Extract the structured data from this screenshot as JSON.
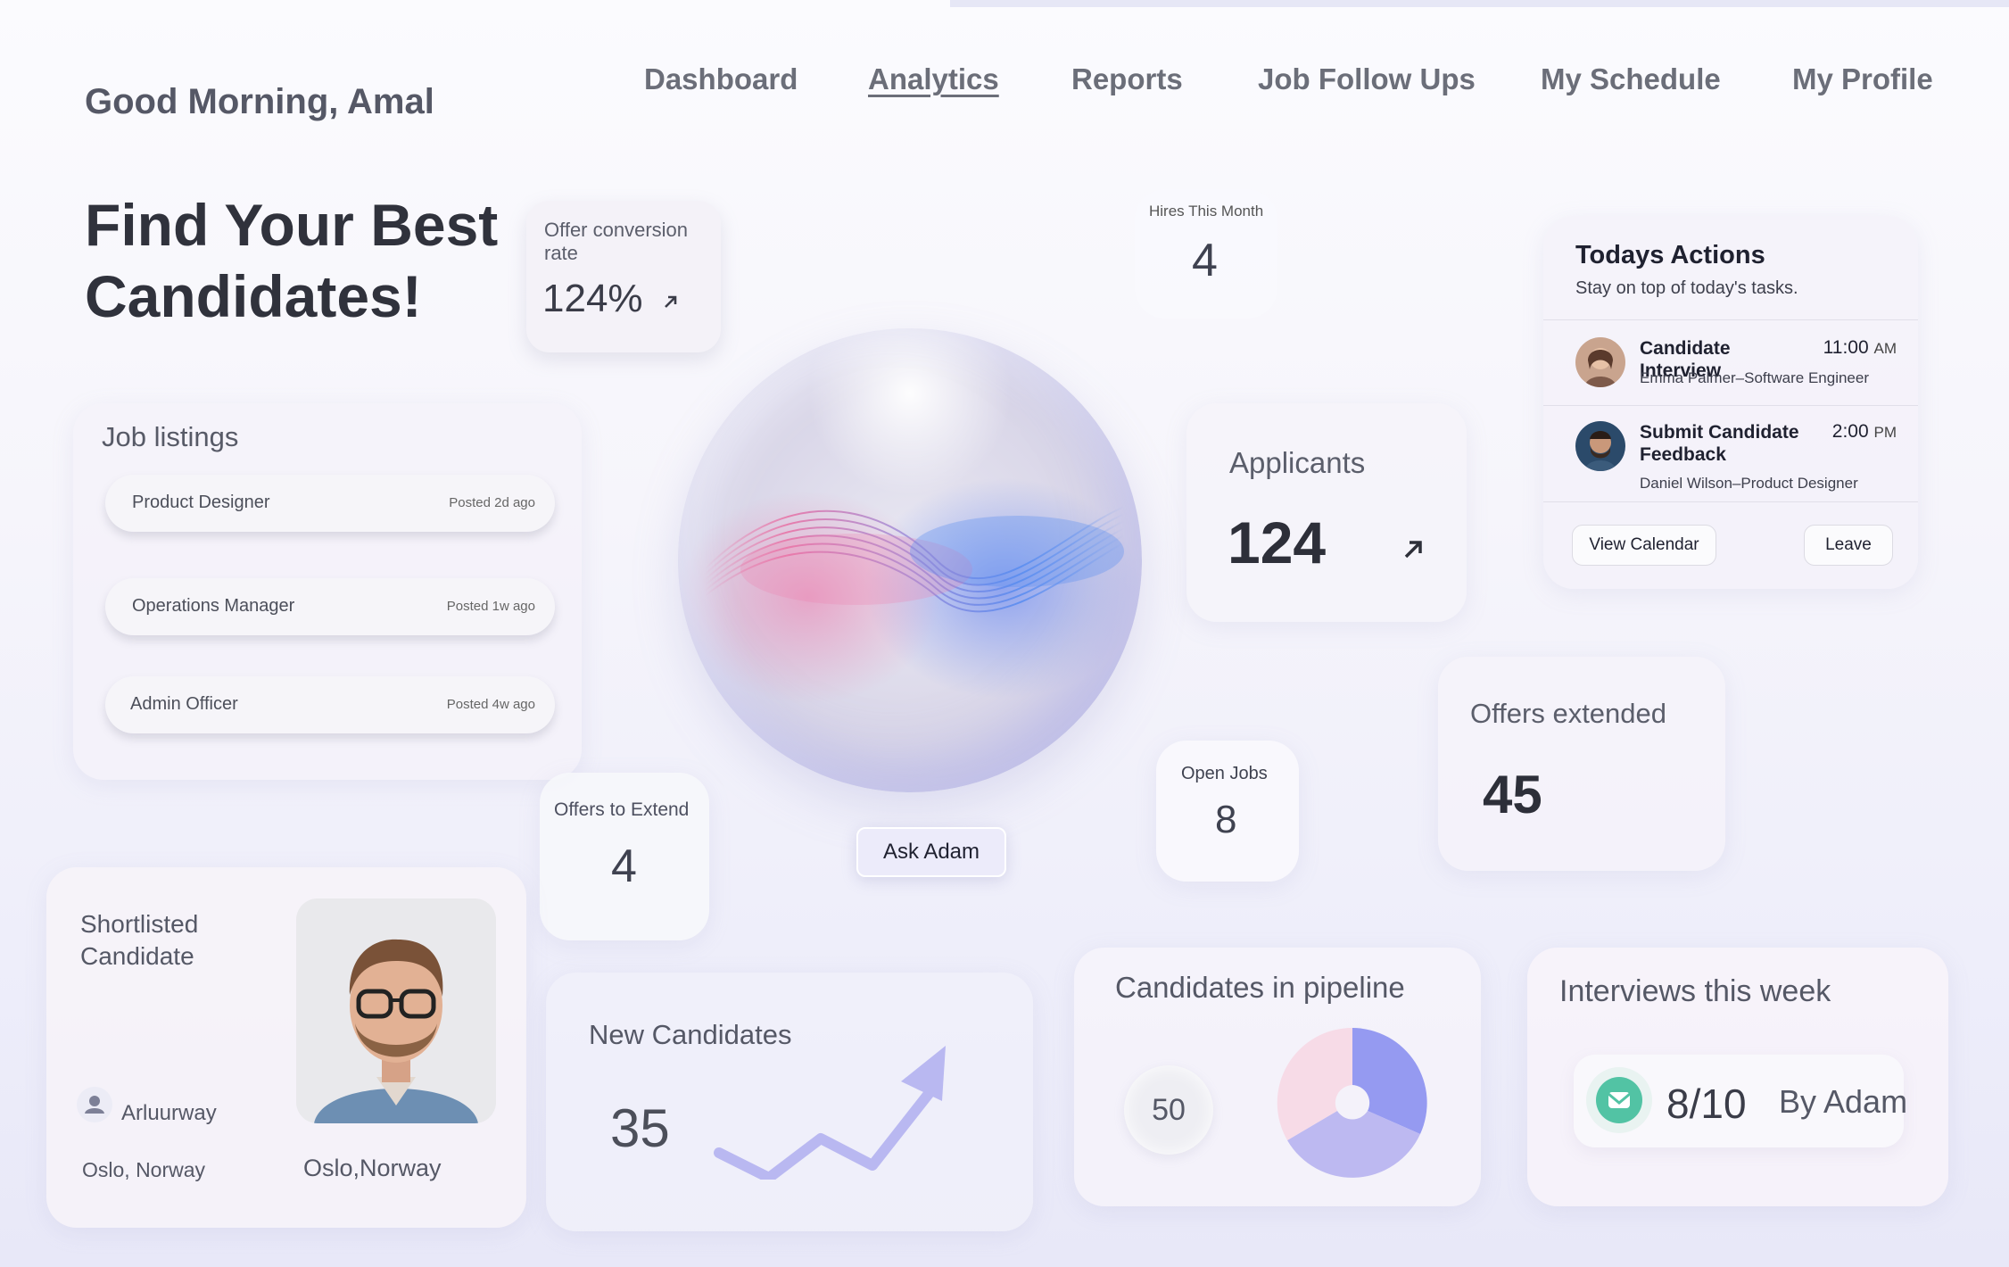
{
  "greeting": "Good Morning, Amal",
  "nav": {
    "items": [
      {
        "label": "Dashboard"
      },
      {
        "label": "Analytics"
      },
      {
        "label": "Reports"
      },
      {
        "label": "Job Follow Ups"
      },
      {
        "label": "My Schedule"
      },
      {
        "label": "My Profile"
      }
    ],
    "active": "Analytics"
  },
  "hero": {
    "line1": "Find Your Best",
    "line2": "Candidates!"
  },
  "offer_conversion": {
    "label": "Offer conversion rate",
    "value": "124%"
  },
  "hires_this_month": {
    "label": "Hires This Month",
    "value": "4"
  },
  "job_listings": {
    "title": "Job listings",
    "items": [
      {
        "name": "Product Designer",
        "posted": "Posted 2d ago"
      },
      {
        "name": "Operations Manager",
        "posted": "Posted 1w ago"
      },
      {
        "name": "Admin Officer",
        "posted": "Posted 4w ago"
      }
    ]
  },
  "applicants": {
    "label": "Applicants",
    "value": "124"
  },
  "todays_actions": {
    "title": "Todays Actions",
    "subtitle": "Stay on top of today's tasks.",
    "tasks": [
      {
        "title": "Candidate Interview",
        "time": "11:00",
        "period": "AM",
        "desc": "Emma Palmer–Software Engineer"
      },
      {
        "title": "Submit Candidate Feedback",
        "time": "2:00",
        "period": "PM",
        "desc": "Daniel Wilson–Product Designer"
      }
    ],
    "view_calendar": "View Calendar",
    "leave": "Leave"
  },
  "ask_adam": "Ask Adam",
  "offers_extended": {
    "label": "Offers extended",
    "value": "45"
  },
  "open_jobs": {
    "label": "Open Jobs",
    "value": "8"
  },
  "offers_to_extend": {
    "label": "Offers to Extend",
    "value": "4"
  },
  "shortlisted": {
    "label": "Shortlisted Candidate",
    "name": "Arluurway",
    "location_left": "Oslo, Norway",
    "location_right": "Oslo,Norway"
  },
  "new_candidates": {
    "label": "New Candidates",
    "value": "35"
  },
  "pipeline": {
    "label": "Candidates in pipeline",
    "value": "50"
  },
  "interviews": {
    "label": "Interviews this week",
    "value": "8/10",
    "by": "By Adam"
  },
  "colors": {
    "accent": "#8f95f0",
    "pink": "#f6d9e6",
    "lavender": "#b9b7f2"
  }
}
